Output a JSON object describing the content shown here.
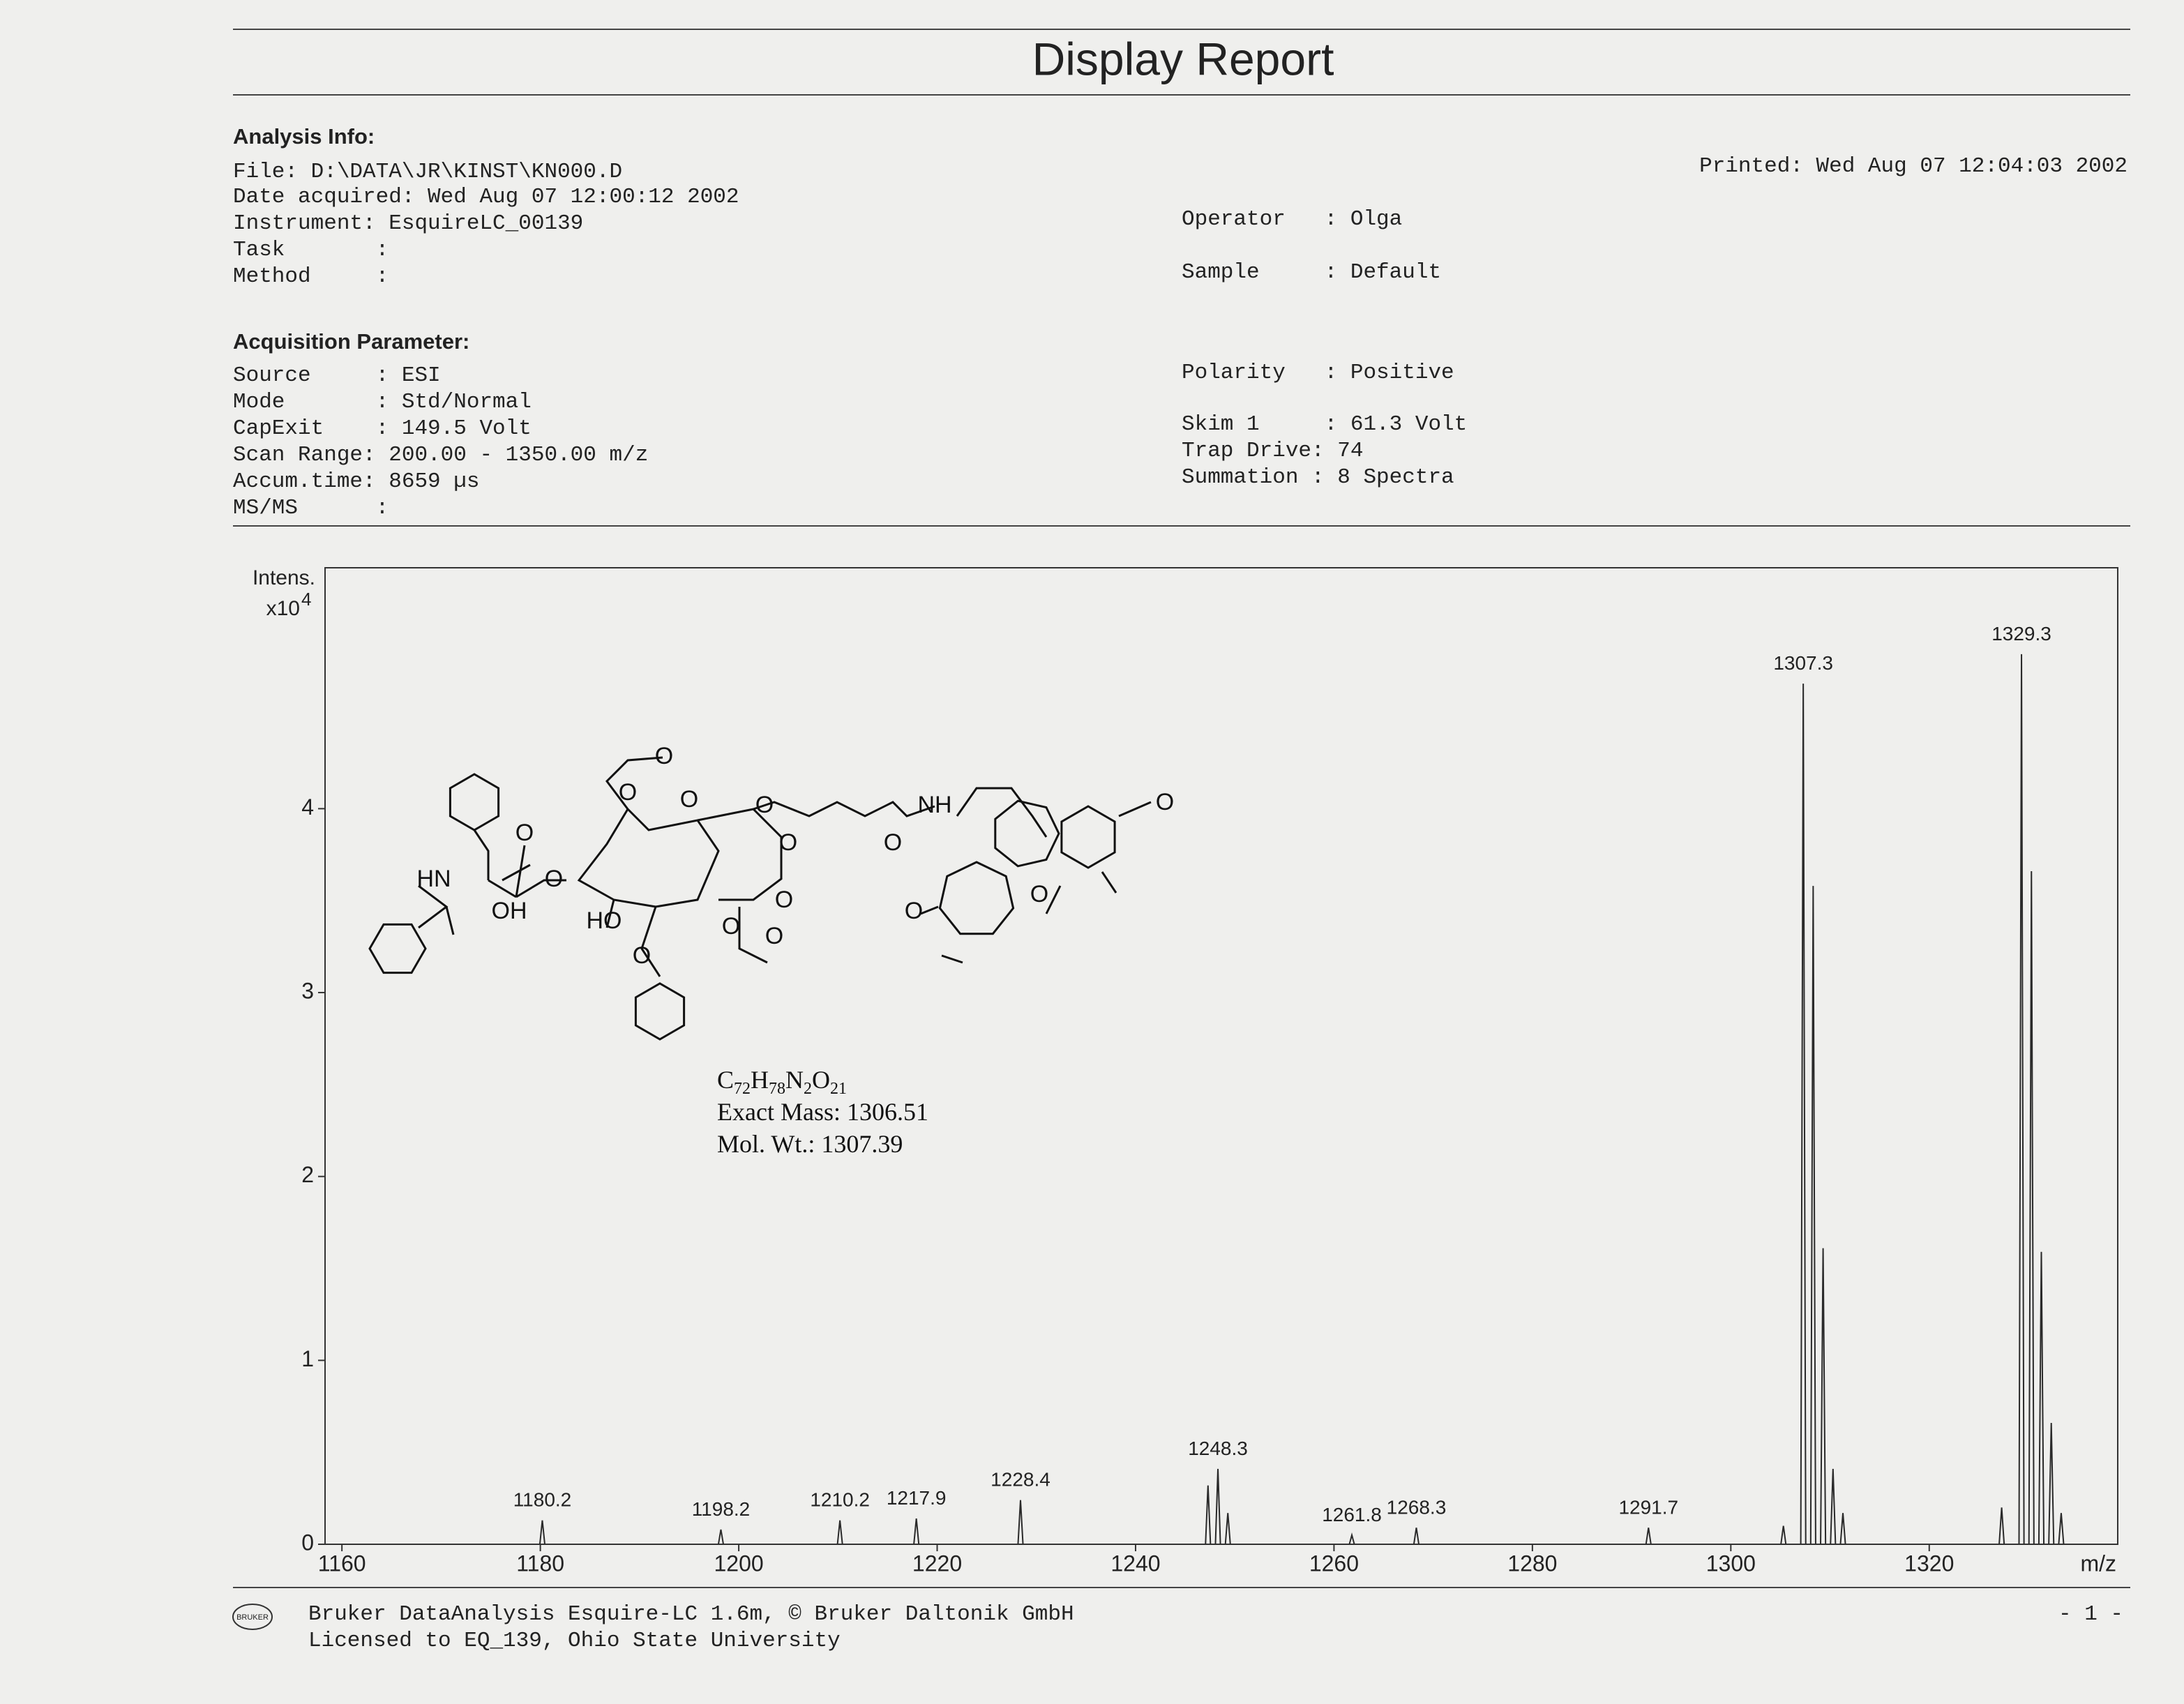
{
  "header": {
    "title": "Display Report"
  },
  "analysis": {
    "heading": "Analysis Info:",
    "lines": [
      "File: D:\\DATA\\JR\\KINST\\KN000.D",
      "Date acquired: Wed Aug 07 12:00:12 2002",
      "Instrument: EsquireLC_00139",
      "Task       :",
      "Method     :"
    ],
    "printed": "Printed: Wed Aug 07 12:04:03 2002",
    "right": [
      "Operator   : Olga",
      "Sample     : Default"
    ]
  },
  "acquisition": {
    "heading": "Acquisition Parameter:",
    "lines": [
      "Source     : ESI",
      "Mode       : Std/Normal",
      "CapExit    : 149.5 Volt",
      "Scan Range: 200.00 - 1350.00 m/z",
      "Accum.time: 8659 µs",
      "MS/MS      :"
    ],
    "right": [
      "Polarity   : Positive",
      "Skim 1     : 61.3 Volt",
      "Trap Drive: 74",
      "Summation : 8 Spectra"
    ]
  },
  "structure": {
    "labels": [
      "HN",
      "OH",
      "O",
      "O",
      "HO",
      "O",
      "O",
      "O",
      "O",
      "O",
      "O",
      "NH",
      "O",
      "O",
      "O",
      "O",
      "O",
      "O",
      "O"
    ],
    "formula": [
      "C",
      "72",
      "H",
      "78",
      "N",
      "2",
      "O",
      "21"
    ],
    "exact_mass": "Exact Mass: 1306.51",
    "mol_wt": "Mol. Wt.: 1307.39"
  },
  "chart_data": {
    "type": "stick",
    "y_label": "Intens.",
    "y_unit_base": "x10",
    "y_unit_exponent": "4",
    "x_label": "m/z",
    "color": "#2a2a2a",
    "x": [
      1180.2,
      1198.2,
      1210.2,
      1217.9,
      1228.4,
      1247.3,
      1248.3,
      1249.3,
      1261.8,
      1268.3,
      1291.7,
      1305.3,
      1307.3,
      1308.3,
      1309.3,
      1310.3,
      1311.3,
      1327.3,
      1329.3,
      1330.3,
      1331.3,
      1332.3,
      1333.3
    ],
    "values": [
      0.13,
      0.08,
      0.13,
      0.14,
      0.24,
      0.32,
      0.41,
      0.17,
      0.05,
      0.09,
      0.09,
      0.1,
      4.68,
      3.58,
      1.61,
      0.41,
      0.17,
      0.2,
      4.84,
      3.66,
      1.59,
      0.66,
      0.17
    ],
    "peak_labels": [
      "1180.2",
      "1198.2",
      "1210.2",
      "1217.9",
      "1228.4",
      null,
      "1248.3",
      null,
      "1261.8",
      "1268.3",
      "1291.7",
      null,
      "1307.3",
      null,
      null,
      null,
      null,
      null,
      "1329.3",
      null,
      null,
      null,
      null
    ],
    "xlim": [
      1158.3,
      1339
    ],
    "ylim": [
      0,
      5.31
    ],
    "xticks": [
      1160,
      1180,
      1200,
      1220,
      1240,
      1260,
      1280,
      1300,
      1320
    ],
    "yticks": [
      0,
      1,
      2,
      3,
      4
    ]
  },
  "footer": {
    "logo": "BRUKER",
    "lines": [
      "Bruker DataAnalysis Esquire-LC 1.6m, © Bruker Daltonik GmbH",
      "Licensed to EQ_139, Ohio State University"
    ],
    "page": "- 1 -"
  }
}
